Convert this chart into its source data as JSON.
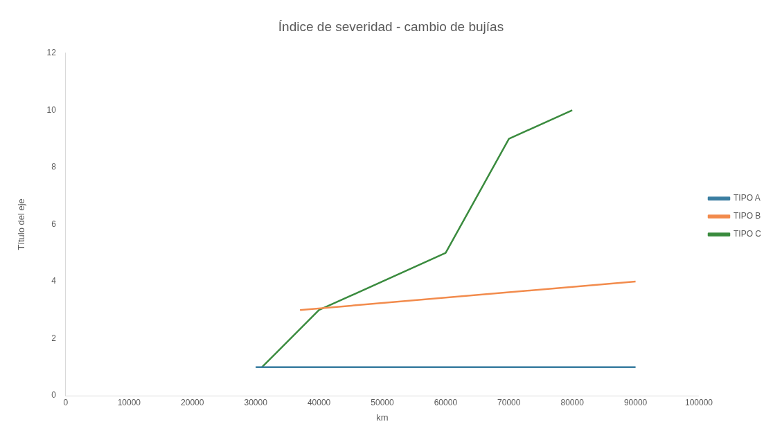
{
  "chart_data": {
    "type": "line",
    "title": "Índice de severidad - cambio de bujías",
    "xlabel": "km",
    "ylabel": "Título del eje",
    "series": [
      {
        "name": "TIPO A",
        "color": "#3b7ea1",
        "x": [
          30000,
          90000
        ],
        "values": [
          1,
          1
        ]
      },
      {
        "name": "TIPO B",
        "color": "#f28b4c",
        "x": [
          37000,
          90000
        ],
        "values": [
          3,
          4
        ]
      },
      {
        "name": "TIPO C",
        "color": "#3a8b3e",
        "x": [
          31000,
          40000,
          60000,
          70000,
          80000
        ],
        "values": [
          1,
          3,
          5,
          9,
          10
        ]
      }
    ],
    "xlim": [
      0,
      100000
    ],
    "xticks": [
      0,
      10000,
      20000,
      30000,
      40000,
      50000,
      60000,
      70000,
      80000,
      90000,
      100000
    ],
    "ylim": [
      0,
      12
    ],
    "yticks": [
      0,
      2,
      4,
      6,
      8,
      10,
      12
    ],
    "grid": false,
    "legend": "right",
    "marker": "none",
    "line_style": "solid"
  }
}
